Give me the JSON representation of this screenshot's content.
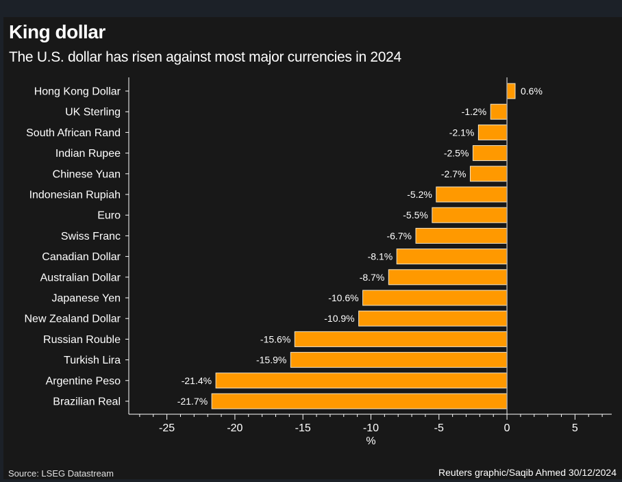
{
  "title": "King dollar",
  "subtitle": "The U.S. dollar has risen against most major currencies in 2024",
  "source": "Source: LSEG Datastream",
  "credit": "Reuters graphic/Saqib Ahmed 30/12/2024",
  "colors": {
    "bar": "#ff9900",
    "background": "#181818",
    "text": "#ffffff"
  },
  "chart_data": {
    "type": "bar",
    "orientation": "horizontal",
    "categories": [
      "Hong Kong Dollar",
      "UK Sterling",
      "South African Rand",
      "Indian Rupee",
      "Chinese Yuan",
      "Indonesian Rupiah",
      "Euro",
      "Swiss Franc",
      "Canadian Dollar",
      "Australian Dollar",
      "Japanese Yen",
      "New Zealand Dollar",
      "Russian Rouble",
      "Turkish Lira",
      "Argentine Peso",
      "Brazilian Real"
    ],
    "values": [
      0.6,
      -1.2,
      -2.1,
      -2.5,
      -2.7,
      -5.2,
      -5.5,
      -6.7,
      -8.1,
      -8.7,
      -10.6,
      -10.9,
      -15.6,
      -15.9,
      -21.4,
      -21.7
    ],
    "data_labels": [
      "0.6%",
      "-1.2%",
      "-2.1%",
      "-2.5%",
      "-2.7%",
      "-5.2%",
      "-5.5%",
      "-6.7%",
      "-8.1%",
      "-8.7%",
      "-10.6%",
      "-10.9%",
      "-15.6%",
      "-15.9%",
      "-21.4%",
      "-21.7%"
    ],
    "xlabel": "%",
    "xticks": [
      -25,
      -20,
      -15,
      -10,
      -5,
      0,
      5
    ],
    "xlim": [
      -27.8,
      7.7
    ],
    "grid": false
  }
}
